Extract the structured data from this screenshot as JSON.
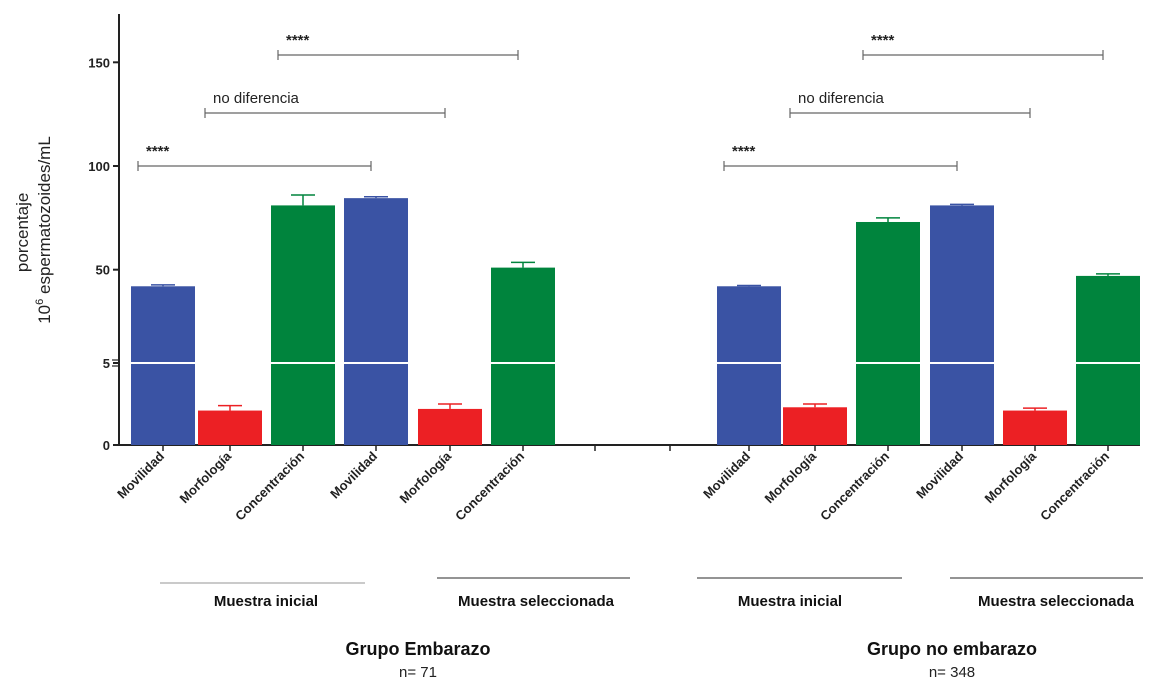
{
  "chart_data": {
    "type": "bar",
    "ylabel_line1": "porcentaje",
    "ylabel_line2_pre": "10",
    "ylabel_line2_sup": "6",
    "ylabel_line2_post": " espermatozoides/mL",
    "yticks": [
      "0",
      "5",
      "50",
      "100",
      "150"
    ],
    "axis_break": true,
    "categories": [
      "Movilidad",
      "Morfología",
      "Concentración",
      "Movilidad",
      "Morfología",
      "Concentración",
      "Movilidad",
      "Morfología",
      "Concentración",
      "Movilidad",
      "Morfología",
      "Concentración"
    ],
    "series": [
      {
        "values": [
          42,
          2.1,
          81,
          84.5,
          2.2,
          51,
          42,
          2.3,
          73,
          81,
          2.1,
          47
        ],
        "errors": [
          0.7,
          0.3,
          5,
          0.7,
          0.3,
          2.5,
          0.4,
          0.2,
          2,
          0.5,
          0.15,
          1
        ]
      }
    ],
    "bar_colors": [
      "#3a53a4",
      "#ec2024",
      "#00843d",
      "#3a53a4",
      "#ec2024",
      "#00843d",
      "#3a53a4",
      "#ec2024",
      "#00843d",
      "#3a53a4",
      "#ec2024",
      "#00843d"
    ],
    "annotations": [
      {
        "text": "****",
        "from": 0,
        "to": 3
      },
      {
        "text": "no diferencia",
        "from": 1,
        "to": 4
      },
      {
        "text": "****",
        "from": 2,
        "to": 5
      },
      {
        "text": "****",
        "from": 6,
        "to": 9
      },
      {
        "text": "no diferencia",
        "from": 7,
        "to": 10
      },
      {
        "text": "****",
        "from": 8,
        "to": 11
      }
    ],
    "subgroups": [
      "Muestra inicial",
      "Muestra seleccionada",
      "Muestra inicial",
      "Muestra seleccionada"
    ],
    "groups": [
      {
        "title": "Grupo Embarazo",
        "n": "n= 71"
      },
      {
        "title": "Grupo no embarazo",
        "n": "n= 348"
      }
    ]
  }
}
